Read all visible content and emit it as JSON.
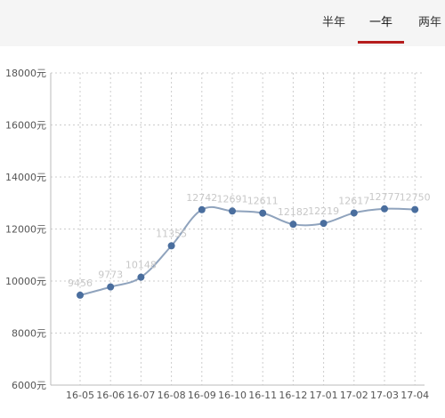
{
  "tabs": [
    {
      "label": "半年",
      "active": false
    },
    {
      "label": "一年",
      "active": true
    },
    {
      "label": "两年",
      "active": false
    }
  ],
  "colors": {
    "accent": "#b51d1d",
    "line": "#8fa3bd",
    "point": "#4a6e9e",
    "value_label": "#c8c8c8",
    "axis_text": "#555555",
    "grid": "#cccccc"
  },
  "chart_data": {
    "type": "line",
    "title": "",
    "xlabel": "",
    "ylabel": "",
    "categories": [
      "16-05",
      "16-06",
      "16-07",
      "16-08",
      "16-09",
      "16-10",
      "16-11",
      "16-12",
      "17-01",
      "17-02",
      "17-03",
      "17-04"
    ],
    "series": [
      {
        "values": [
          9456,
          9773,
          10148,
          11355,
          12742,
          12691,
          12611,
          12182,
          12219,
          12617,
          12777,
          12750
        ]
      }
    ],
    "data_labels": [
      "9456",
      "9773",
      "10148",
      "11355",
      "12742",
      "12691",
      "12611",
      "12182",
      "12219",
      "12617",
      "12777",
      "12750"
    ],
    "ylim": [
      6000,
      18000
    ],
    "yticks": [
      6000,
      8000,
      10000,
      12000,
      14000,
      16000,
      18000
    ],
    "ytick_labels": [
      "6000元",
      "8000元",
      "10000元",
      "12000元",
      "14000元",
      "16000元",
      "18000元"
    ],
    "grid": true,
    "legend": "none"
  }
}
